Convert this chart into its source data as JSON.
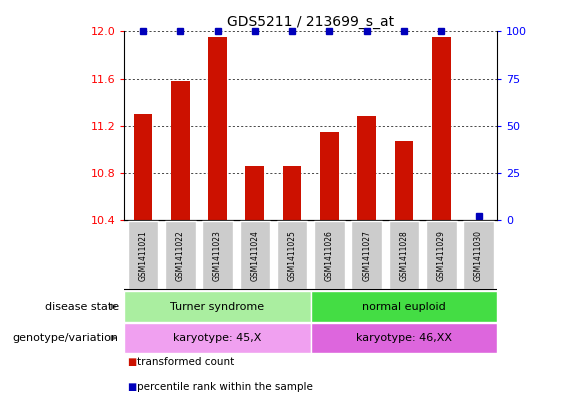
{
  "title": "GDS5211 / 213699_s_at",
  "samples": [
    "GSM1411021",
    "GSM1411022",
    "GSM1411023",
    "GSM1411024",
    "GSM1411025",
    "GSM1411026",
    "GSM1411027",
    "GSM1411028",
    "GSM1411029",
    "GSM1411030"
  ],
  "transformed_counts": [
    11.3,
    11.58,
    11.95,
    10.855,
    10.86,
    11.15,
    11.28,
    11.07,
    11.95,
    10.4
  ],
  "ylim_left": [
    10.4,
    12.0
  ],
  "ylim_right": [
    0,
    100
  ],
  "yticks_left": [
    10.4,
    10.8,
    11.2,
    11.6,
    12.0
  ],
  "yticks_right": [
    0,
    25,
    50,
    75,
    100
  ],
  "bar_color": "#cc1100",
  "dot_color": "#0000bb",
  "disease_state_groups": [
    {
      "label": "Turner syndrome",
      "start": 0,
      "end": 5,
      "color": "#aaeea0"
    },
    {
      "label": "normal euploid",
      "start": 5,
      "end": 10,
      "color": "#44dd44"
    }
  ],
  "genotype_groups": [
    {
      "label": "karyotype: 45,X",
      "start": 0,
      "end": 5,
      "color": "#f0a0f0"
    },
    {
      "label": "karyotype: 46,XX",
      "start": 5,
      "end": 10,
      "color": "#dd66dd"
    }
  ],
  "row_labels": [
    "disease state",
    "genotype/variation"
  ],
  "legend_items": [
    {
      "color": "#cc1100",
      "label": "transformed count"
    },
    {
      "color": "#0000bb",
      "label": "percentile rank within the sample"
    }
  ],
  "sample_col_color": "#cccccc",
  "percentile_values": [
    100,
    100,
    100,
    100,
    100,
    100,
    100,
    100,
    100,
    2
  ]
}
